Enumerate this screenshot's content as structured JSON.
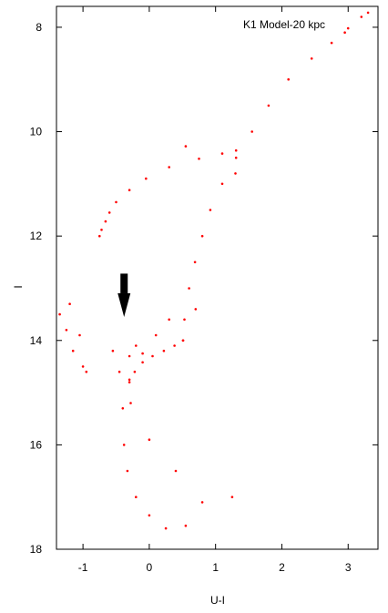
{
  "chart_data": {
    "type": "scatter",
    "title": "",
    "annotation": "K1 Model-20 kpc",
    "xlabel": "U-I",
    "ylabel": "I",
    "xlim": [
      -1.4,
      3.45
    ],
    "ylim": [
      18,
      7.6
    ],
    "y_inverted": true,
    "grid": false,
    "legend": "none",
    "x_ticks": [
      -1,
      0,
      1,
      2,
      3
    ],
    "y_ticks": [
      8,
      10,
      12,
      14,
      16,
      18
    ],
    "marker_color": "#ff0000",
    "arrow_color": "#000000",
    "arrow": {
      "from": [
        -0.38,
        12.72
      ],
      "to": [
        -0.38,
        13.55
      ]
    },
    "series": [
      {
        "component": "red-giant-branch",
        "points": [
          [
            0.51,
            14.0
          ],
          [
            0.53,
            13.6
          ],
          [
            0.6,
            13.0
          ],
          [
            0.69,
            12.5
          ],
          [
            0.8,
            12.0
          ],
          [
            0.92,
            11.5
          ],
          [
            1.1,
            11.0
          ],
          [
            1.31,
            10.5
          ],
          [
            1.55,
            10.0
          ],
          [
            1.8,
            9.5
          ],
          [
            2.1,
            9.0
          ],
          [
            2.45,
            8.6
          ],
          [
            2.75,
            8.3
          ],
          [
            3.0,
            8.02
          ],
          [
            3.2,
            7.8
          ]
        ]
      },
      {
        "component": "subgiant-branch",
        "points": [
          [
            -0.3,
            14.75
          ],
          [
            -0.22,
            14.6
          ],
          [
            -0.1,
            14.42
          ],
          [
            0.05,
            14.3
          ],
          [
            0.22,
            14.2
          ],
          [
            0.38,
            14.1
          ],
          [
            0.51,
            14.0
          ]
        ]
      },
      {
        "component": "horizontal-branch",
        "points": [
          [
            -0.75,
            12.0
          ],
          [
            -0.72,
            11.88
          ],
          [
            -0.66,
            11.72
          ],
          [
            -0.6,
            11.55
          ],
          [
            -0.5,
            11.35
          ],
          [
            -0.3,
            11.12
          ],
          [
            -0.05,
            10.9
          ],
          [
            0.3,
            10.68
          ],
          [
            0.75,
            10.52
          ],
          [
            1.1,
            10.42
          ],
          [
            1.31,
            10.36
          ]
        ]
      },
      {
        "component": "main-sequence",
        "points": [
          [
            -0.4,
            15.3
          ],
          [
            -0.38,
            16.0
          ],
          [
            -0.33,
            16.5
          ],
          [
            -0.2,
            17.0
          ],
          [
            0.0,
            17.35
          ],
          [
            0.25,
            17.6
          ],
          [
            0.55,
            17.55
          ],
          [
            0.8,
            17.1
          ],
          [
            0.4,
            16.5
          ],
          [
            0.0,
            15.9
          ],
          [
            -0.28,
            15.2
          ],
          [
            -0.3,
            14.8
          ]
        ]
      },
      {
        "component": "scattered-stars",
        "points": [
          [
            -1.35,
            13.5
          ],
          [
            -1.25,
            13.8
          ],
          [
            -1.15,
            14.2
          ],
          [
            -1.05,
            13.9
          ],
          [
            -1.0,
            14.5
          ],
          [
            -1.2,
            13.3
          ],
          [
            -0.95,
            14.6
          ],
          [
            -0.55,
            14.2
          ],
          [
            -0.45,
            14.6
          ],
          [
            -0.3,
            14.3
          ],
          [
            -0.2,
            14.1
          ],
          [
            -0.1,
            14.25
          ],
          [
            0.1,
            13.9
          ],
          [
            0.3,
            13.6
          ],
          [
            1.3,
            10.8
          ],
          [
            0.55,
            10.28
          ],
          [
            2.95,
            8.1
          ],
          [
            3.3,
            7.72
          ],
          [
            0.7,
            13.4
          ],
          [
            1.25,
            17.0
          ]
        ]
      }
    ]
  }
}
